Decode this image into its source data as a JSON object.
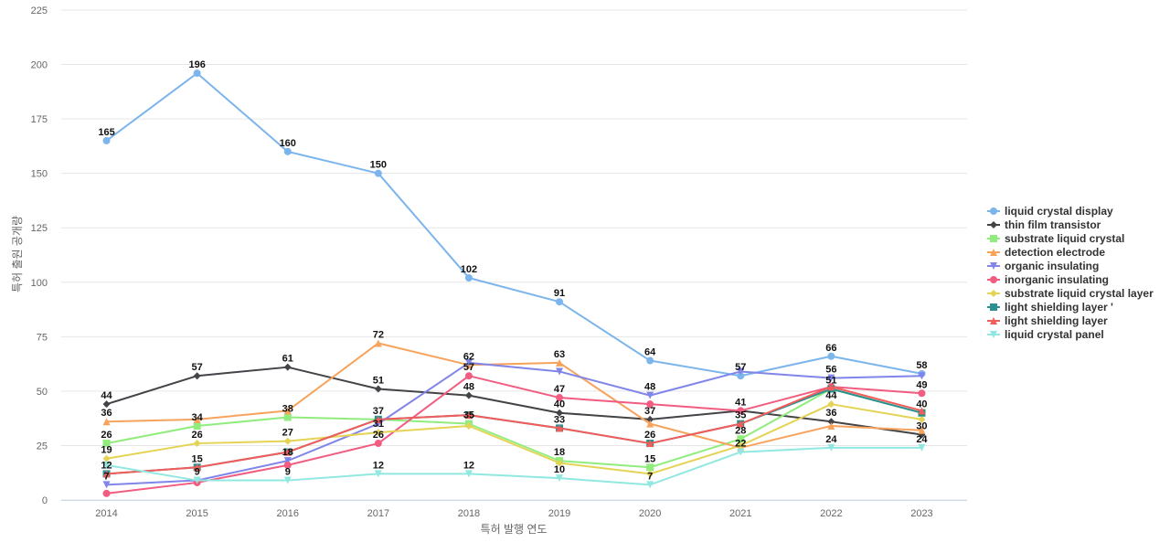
{
  "chart_data": {
    "type": "line",
    "title": "",
    "xlabel": "특허 발행 연도",
    "ylabel": "특허 출원 공개량",
    "ylim": [
      0,
      225
    ],
    "yticks": [
      0,
      25,
      50,
      75,
      100,
      125,
      150,
      175,
      200,
      225
    ],
    "grid": true,
    "legend_position": "right",
    "x": [
      "2014",
      "2015",
      "2016",
      "2017",
      "2018",
      "2019",
      "2020",
      "2021",
      "2022",
      "2023"
    ],
    "series": [
      {
        "name": "liquid crystal display",
        "color": "#7cb5ec",
        "marker": "circle",
        "values": [
          165,
          196,
          160,
          150,
          102,
          91,
          64,
          57,
          66,
          58
        ]
      },
      {
        "name": "thin film transistor",
        "color": "#434348",
        "marker": "diamond",
        "values": [
          44,
          57,
          61,
          51,
          48,
          40,
          37,
          41,
          36,
          30
        ]
      },
      {
        "name": "substrate liquid crystal",
        "color": "#90ed7d",
        "marker": "square",
        "values": [
          26,
          34,
          38,
          37,
          35,
          18,
          15,
          28,
          51,
          40
        ]
      },
      {
        "name": "detection electrode",
        "color": "#f7a35c",
        "marker": "triangle",
        "values": [
          36,
          37,
          41,
          72,
          62,
          63,
          35,
          24,
          34,
          32
        ]
      },
      {
        "name": "organic insulating",
        "color": "#8085e9",
        "marker": "triangle-down",
        "values": [
          7,
          9,
          18,
          35,
          63,
          59,
          48,
          59,
          56,
          57
        ]
      },
      {
        "name": "inorganic insulating",
        "color": "#f15c80",
        "marker": "circle",
        "values": [
          3,
          8,
          16,
          26,
          57,
          47,
          44,
          41,
          52,
          49
        ]
      },
      {
        "name": "substrate liquid crystal layer",
        "color": "#e4d354",
        "marker": "diamond",
        "values": [
          19,
          26,
          27,
          31,
          34,
          17,
          12,
          25,
          44,
          37
        ]
      },
      {
        "name": "light shielding layer '",
        "color": "#2b908f",
        "marker": "square",
        "values": [
          12,
          15,
          22,
          37,
          39,
          33,
          26,
          35,
          51,
          40
        ]
      },
      {
        "name": "light shielding layer",
        "color": "#f45b5b",
        "marker": "triangle",
        "values": [
          12,
          15,
          22,
          37,
          39,
          33,
          26,
          35,
          52,
          41
        ]
      },
      {
        "name": "liquid crystal panel",
        "color": "#91e8e1",
        "marker": "triangle-down",
        "values": [
          16,
          9,
          9,
          12,
          12,
          10,
          7,
          22,
          24,
          24
        ]
      }
    ],
    "data_labels": [
      {
        "series": 0,
        "values": [
          165,
          196,
          160,
          150,
          102,
          91,
          64,
          57,
          66,
          58
        ]
      },
      {
        "series": 1,
        "values": [
          44,
          57,
          61,
          51,
          48,
          40,
          37,
          41,
          36,
          30
        ]
      },
      {
        "series": 2,
        "values": [
          26,
          34,
          38,
          37,
          35,
          18,
          15,
          28,
          51,
          40
        ]
      },
      {
        "series": 3,
        "values": [
          36,
          37,
          41,
          72,
          62,
          63,
          35,
          24,
          34,
          32
        ]
      },
      {
        "series": 4,
        "values": [
          7,
          9,
          18,
          35,
          63,
          59,
          48,
          59,
          56,
          57
        ]
      },
      {
        "series": 5,
        "values": [
          3,
          8,
          16,
          26,
          57,
          47,
          44,
          41,
          52,
          49
        ]
      },
      {
        "series": 6,
        "values": [
          19,
          26,
          27,
          31,
          34,
          17,
          12,
          25,
          44,
          37
        ]
      },
      {
        "series": 7,
        "values": [
          12,
          15,
          22,
          37,
          39,
          33,
          26,
          35,
          51,
          40
        ]
      },
      {
        "series": 8,
        "values": [
          12,
          15,
          22,
          37,
          39,
          33,
          26,
          35,
          52,
          41
        ]
      },
      {
        "series": 9,
        "values": [
          16,
          9,
          9,
          12,
          12,
          10,
          7,
          22,
          24,
          24
        ]
      }
    ],
    "printed_labels": [
      {
        "x": "2014",
        "text": [
          "165",
          "44",
          "36",
          "26",
          "19",
          "12",
          "7"
        ]
      },
      {
        "x": "2015",
        "text": [
          "196",
          "57",
          "34",
          "26",
          "15",
          "9"
        ]
      },
      {
        "x": "2016",
        "text": [
          "160",
          "61",
          "38",
          "27",
          "18",
          "9"
        ]
      },
      {
        "x": "2017",
        "text": [
          "150",
          "72",
          "51",
          "37",
          "31",
          "26",
          "12"
        ]
      },
      {
        "x": "2018",
        "text": [
          "102",
          "62",
          "57",
          "48",
          "35",
          "12"
        ]
      },
      {
        "x": "2019",
        "text": [
          "91",
          "63",
          "47",
          "40",
          "33",
          "18",
          "10"
        ]
      },
      {
        "x": "2020",
        "text": [
          "64",
          "48",
          "37",
          "26",
          "15",
          "7"
        ]
      },
      {
        "x": "2021",
        "text": [
          "57",
          "41",
          "35",
          "28",
          "22"
        ]
      },
      {
        "x": "2022",
        "text": [
          "66",
          "56",
          "51",
          "44",
          "36",
          "24"
        ]
      },
      {
        "x": "2023",
        "text": [
          "58",
          "49",
          "40",
          "30",
          "24"
        ]
      }
    ]
  }
}
